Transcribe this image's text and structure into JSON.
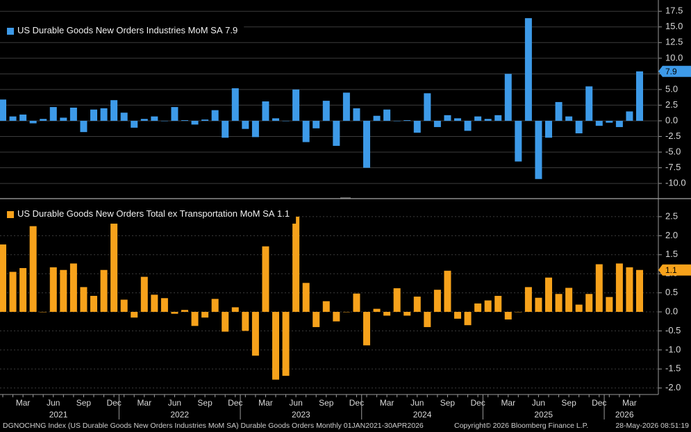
{
  "chart_data": [
    {
      "type": "bar",
      "legend": "upper left",
      "series": [
        {
          "name": "US Durable Goods New Orders Industries MoM SA",
          "color": "#3d9ae8",
          "values": [
            3.4,
            0.7,
            1.0,
            -0.4,
            0.3,
            2.2,
            0.5,
            2.1,
            -1.8,
            1.8,
            2.0,
            3.3,
            1.3,
            -1.1,
            0.3,
            0.7,
            0.0,
            2.2,
            0.1,
            -0.6,
            0.2,
            1.7,
            -2.7,
            5.2,
            -1.3,
            -2.6,
            3.1,
            0.4,
            0.0,
            5.0,
            -3.4,
            -1.2,
            3.2,
            -4.0,
            4.5,
            2.0,
            -7.5,
            0.8,
            1.8,
            0.0,
            0.1,
            -1.9,
            4.4,
            -1.0,
            0.9,
            0.4,
            -1.6,
            0.7,
            0.3,
            0.9,
            7.5,
            -6.5,
            16.4,
            -9.3,
            -2.7,
            3.0,
            0.7,
            -2.0,
            5.5,
            -0.8,
            -0.3,
            -1.0,
            1.5,
            7.9
          ]
        }
      ],
      "ylim": [
        -12.1,
        19.3
      ],
      "yticks": [
        17.5,
        {
          "value": 15,
          "label": "15.0"
        },
        12.5,
        {
          "value": 10,
          "label": "10.0"
        },
        7.5,
        {
          "value": 5,
          "label": "5.0"
        },
        2.5,
        {
          "value": 0,
          "label": "0.0"
        },
        -2.5,
        {
          "value": -5,
          "label": "-5.0"
        },
        -7.5,
        {
          "value": -10,
          "label": "-10.0"
        }
      ],
      "grid": true
    },
    {
      "type": "bar",
      "legend": "upper left",
      "series": [
        {
          "name": "US Durable Goods New Orders Total ex Transportation MoM SA",
          "color": "#f7a21b",
          "values": [
            1.77,
            1.05,
            1.15,
            2.25,
            0.0,
            1.17,
            1.1,
            1.27,
            0.65,
            0.42,
            1.1,
            2.5,
            0.32,
            -0.15,
            0.92,
            0.45,
            0.36,
            -0.05,
            0.05,
            -0.37,
            -0.15,
            0.34,
            -0.52,
            0.12,
            -0.5,
            -1.15,
            1.72,
            -1.78,
            -1.68,
            2.5,
            0.76,
            -0.4,
            0.28,
            -0.25,
            0.0,
            0.48,
            -0.88,
            0.08,
            -0.1,
            0.62,
            -0.1,
            0.4,
            -0.4,
            0.58,
            1.08,
            -0.18,
            -0.35,
            0.22,
            0.3,
            0.42,
            -0.2,
            0.0,
            0.65,
            0.37,
            0.9,
            0.47,
            0.63,
            0.19,
            0.47,
            1.25,
            0.39,
            1.27,
            1.17,
            1.1
          ]
        }
      ],
      "ylim": [
        -2.17,
        2.9
      ],
      "yticks": [
        2.5,
        {
          "value": 2,
          "label": "2.0"
        },
        1.5,
        {
          "value": 1,
          "label": "1.0"
        },
        0.5,
        {
          "value": 0,
          "label": "0.0"
        },
        -0.5,
        {
          "value": -1,
          "label": "-1.0"
        },
        -1.5,
        {
          "value": -2,
          "label": "-2.0"
        }
      ],
      "grid": true,
      "categories": [
        null,
        null,
        "Mar",
        null,
        null,
        "Jun",
        null,
        null,
        "Sep",
        null,
        null,
        "Dec",
        null,
        null,
        "Mar",
        null,
        null,
        "Jun",
        null,
        null,
        "Sep",
        null,
        null,
        "Dec",
        null,
        null,
        "Mar",
        null,
        null,
        "Jun",
        null,
        null,
        "Sep",
        null,
        null,
        "Dec",
        null,
        null,
        "Mar",
        null,
        null,
        "Jun",
        null,
        null,
        "Sep",
        null,
        null,
        "Dec",
        null,
        null,
        "Mar",
        null,
        null,
        "Jun",
        null,
        null,
        "Sep",
        null,
        null,
        "Dec",
        null,
        null,
        "Mar",
        null
      ],
      "years": [
        "2021",
        "2022",
        "2023",
        "2024",
        "2025",
        "2026"
      ]
    }
  ],
  "footer": {
    "source": "DGNOCHNG Index (US Durable Goods New Orders Industries MoM SA) Durable Goods Orders Monthly 01JAN2021-30APR2026",
    "copyright": "Copyright© 2026 Bloomberg Finance L.P.",
    "timestamp": "28-May-2026 08:51:19"
  }
}
